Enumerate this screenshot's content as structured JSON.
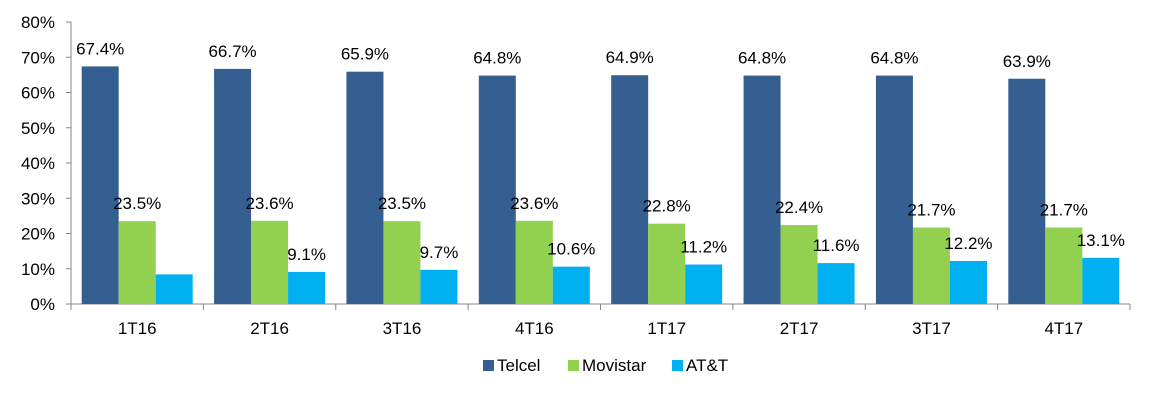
{
  "chart_data": {
    "type": "bar",
    "categories": [
      "1T16",
      "2T16",
      "3T16",
      "4T16",
      "1T17",
      "2T17",
      "3T17",
      "4T17"
    ],
    "series": [
      {
        "name": "Telcel",
        "color": "#355E91",
        "values": [
          67.4,
          66.7,
          65.9,
          64.8,
          64.9,
          64.8,
          64.8,
          63.9
        ],
        "labels": [
          "67.4%",
          "66.7%",
          "65.9%",
          "64.8%",
          "64.9%",
          "64.8%",
          "64.8%",
          "63.9%"
        ]
      },
      {
        "name": "Movistar",
        "color": "#92D050",
        "values": [
          23.5,
          23.6,
          23.5,
          23.6,
          22.8,
          22.4,
          21.7,
          21.7
        ],
        "labels": [
          "23.5%",
          "23.6%",
          "23.5%",
          "23.6%",
          "22.8%",
          "22.4%",
          "21.7%",
          "21.7%"
        ]
      },
      {
        "name": "AT&T",
        "color": "#00B0F0",
        "values": [
          8.4,
          9.1,
          9.7,
          10.6,
          11.2,
          11.6,
          12.2,
          13.1
        ],
        "labels": [
          "",
          "9.1%",
          "9.7%",
          "10.6%",
          "11.2%",
          "11.6%",
          "12.2%",
          "13.1%"
        ]
      }
    ],
    "ylim": [
      0,
      80
    ],
    "yticks": [
      "0%",
      "10%",
      "20%",
      "30%",
      "40%",
      "50%",
      "60%",
      "70%",
      "80%"
    ],
    "legend_position": "bottom",
    "grid": false
  }
}
